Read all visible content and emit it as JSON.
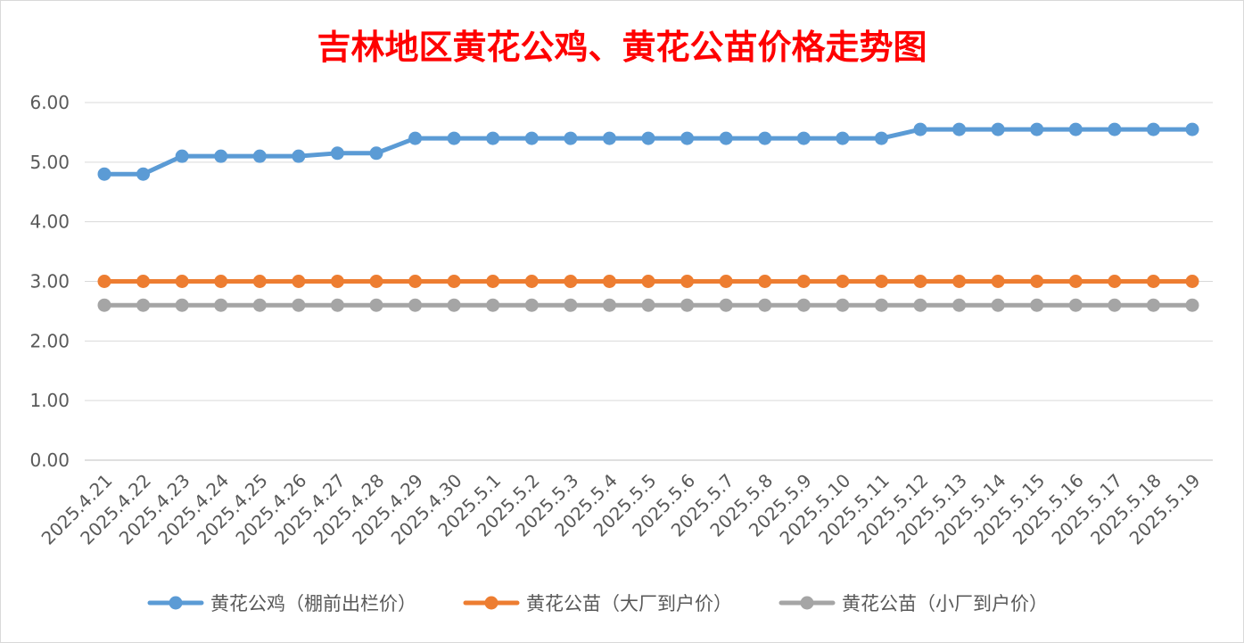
{
  "chart_data": {
    "type": "line",
    "title": "吉林地区黄花公鸡、黄花公苗价格走势图",
    "categories": [
      "2025.4.21",
      "2025.4.22",
      "2025.4.23",
      "2025.4.24",
      "2025.4.25",
      "2025.4.26",
      "2025.4.27",
      "2025.4.28",
      "2025.4.29",
      "2025.4.30",
      "2025.5.1",
      "2025.5.2",
      "2025.5.3",
      "2025.5.4",
      "2025.5.5",
      "2025.5.6",
      "2025.5.7",
      "2025.5.8",
      "2025.5.9",
      "2025.5.10",
      "2025.5.11",
      "2025.5.12",
      "2025.5.13",
      "2025.5.14",
      "2025.5.15",
      "2025.5.16",
      "2025.5.17",
      "2025.5.18",
      "2025.5.19"
    ],
    "y_ticks": [
      "0.00",
      "1.00",
      "2.00",
      "3.00",
      "4.00",
      "5.00",
      "6.00"
    ],
    "ylim": [
      0,
      6
    ],
    "grid": true,
    "legend_position": "bottom",
    "series": [
      {
        "name": "黄花公鸡（棚前出栏价）",
        "color": "#5b9bd5",
        "values": [
          4.8,
          4.8,
          5.1,
          5.1,
          5.1,
          5.1,
          5.15,
          5.15,
          5.4,
          5.4,
          5.4,
          5.4,
          5.4,
          5.4,
          5.4,
          5.4,
          5.4,
          5.4,
          5.4,
          5.4,
          5.4,
          5.55,
          5.55,
          5.55,
          5.55,
          5.55,
          5.55,
          5.55,
          5.55
        ]
      },
      {
        "name": "黄花公苗（大厂到户价）",
        "color": "#ed7d31",
        "values": [
          3,
          3,
          3,
          3,
          3,
          3,
          3,
          3,
          3,
          3,
          3,
          3,
          3,
          3,
          3,
          3,
          3,
          3,
          3,
          3,
          3,
          3,
          3,
          3,
          3,
          3,
          3,
          3,
          3
        ]
      },
      {
        "name": "黄花公苗（小厂到户价）",
        "color": "#a5a5a5",
        "values": [
          2.6,
          2.6,
          2.6,
          2.6,
          2.6,
          2.6,
          2.6,
          2.6,
          2.6,
          2.6,
          2.6,
          2.6,
          2.6,
          2.6,
          2.6,
          2.6,
          2.6,
          2.6,
          2.6,
          2.6,
          2.6,
          2.6,
          2.6,
          2.6,
          2.6,
          2.6,
          2.6,
          2.6,
          2.6
        ]
      }
    ]
  }
}
